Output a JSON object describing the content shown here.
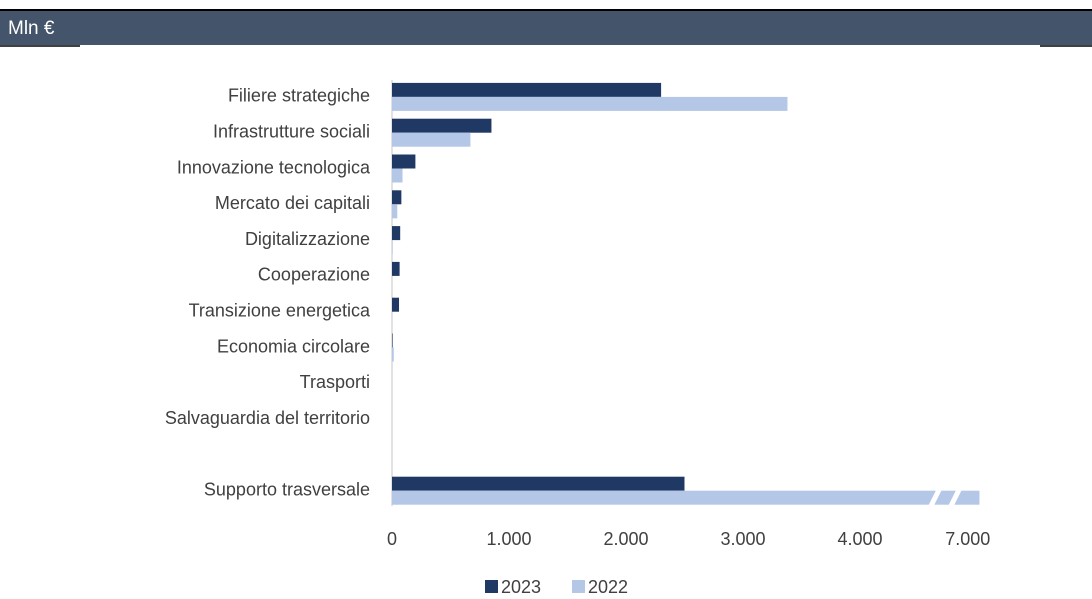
{
  "header": {
    "unit": "Mln €"
  },
  "chart_data": {
    "type": "barh",
    "categories": [
      "Filiere strategiche",
      "Infrastrutture sociali",
      "Innovazione tecnologica",
      "Mercato dei capitali",
      "Digitalizzazione",
      "Cooperazione",
      "Transizione energetica",
      "Economia circolare",
      "Trasporti",
      "Salvaguardia del territorio",
      null,
      "Supporto trasversale"
    ],
    "series": [
      {
        "name": "2023",
        "color": "#1f3864",
        "values": [
          2300,
          850,
          200,
          80,
          70,
          65,
          60,
          5,
          0,
          0,
          null,
          2500
        ]
      },
      {
        "name": "2022",
        "color": "#b4c7e7",
        "values": [
          3380,
          670,
          90,
          45,
          5,
          0,
          0,
          15,
          0,
          0,
          null,
          7100
        ]
      }
    ],
    "xlim": [
      0,
      7100
    ],
    "xbreak": [
      4650,
      6900
    ],
    "xticks": [
      0,
      {
        "value": 1000,
        "label": "1.000"
      },
      {
        "value": 2000,
        "label": "2.000"
      },
      {
        "value": 3000,
        "label": "3.000"
      },
      {
        "value": 4000,
        "label": "4.000"
      },
      {
        "value": 7000,
        "label": "7.000"
      }
    ],
    "legend": "bottom"
  }
}
